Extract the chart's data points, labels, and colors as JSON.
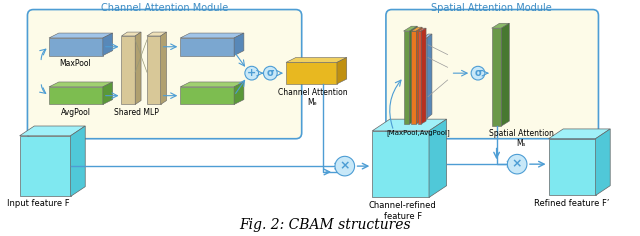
{
  "title": "Fig. 2: CBAM structures",
  "channel_attention_title": "Channel Attention Module",
  "spatial_attention_title": "Spatial Attention Module",
  "labels": {
    "maxpool": "MaxPool",
    "avgpool": "AvgPool",
    "shared_mlp": "Shared MLP",
    "channel_attention": "Channel Attention\nMₑ",
    "maxpool_avgpool": "[MaxPool,AvgPool]",
    "spatial_attention": "Spatial Attention\nMₛ",
    "input_feature": "Input feature F",
    "channel_refined": "Channel-refined\nfeature F",
    "refined_feature": "Refined feature F’"
  },
  "colors": {
    "cyan_face": "#7FE8F0",
    "cyan_top": "#A0F0F8",
    "cyan_side": "#50C8D8",
    "blue_face": "#7BA7D0",
    "blue_top": "#A0C4E8",
    "blue_side": "#5888B8",
    "green_face": "#7DBD50",
    "green_top": "#A0D070",
    "green_side": "#5A9838",
    "yellow_face": "#E8B820",
    "yellow_top": "#F0D060",
    "yellow_side": "#C09010",
    "tan_face": "#D8C898",
    "tan_top": "#EEE0B8",
    "tan_side": "#B0A070",
    "red_face": "#E05030",
    "red_top": "#F07858",
    "red_side": "#B83020",
    "orange_face": "#E87820",
    "orange_top": "#F0A040",
    "orange_side": "#C05818",
    "dkgreen_face": "#6A9848",
    "dkgreen_top": "#8AB868",
    "dkgreen_side": "#487830",
    "beige_bg": "#FDFBE8",
    "border_blue": "#4D9DD4",
    "arrow_blue": "#4D9DD4",
    "title_blue": "#3D8CC4",
    "circle_face": "#C8E8F8",
    "circle_edge": "#4D9DD4"
  },
  "figsize": [
    6.4,
    2.36
  ],
  "dpi": 100
}
